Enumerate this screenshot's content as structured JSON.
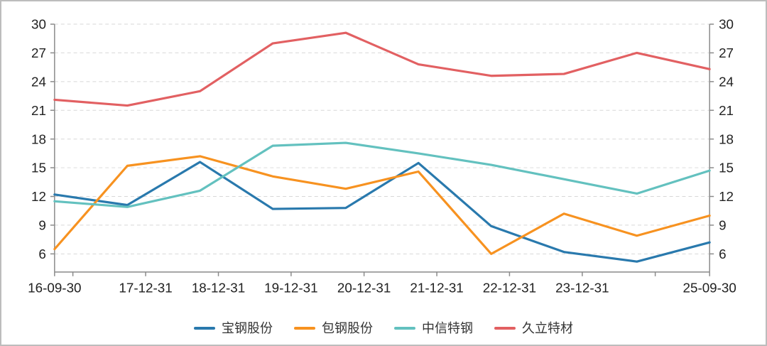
{
  "chart_data": {
    "type": "line",
    "title": "",
    "x_axis": {
      "type": "time",
      "start": "16-09-30",
      "end": "25-09-30",
      "tick_dates": [
        "16-09-30",
        "16-12-31",
        "17-12-31",
        "18-12-31",
        "19-12-31",
        "20-12-31",
        "21-12-31",
        "22-12-31",
        "23-12-31",
        "24-12-31",
        "25-09-30"
      ],
      "label_dates": [
        "16-09-30",
        "17-12-31",
        "18-12-31",
        "19-12-31",
        "20-12-31",
        "21-12-31",
        "22-12-31",
        "23-12-31",
        "25-09-30"
      ]
    },
    "y_axis": {
      "ticks": [
        6,
        9,
        12,
        15,
        18,
        21,
        24,
        27,
        30
      ],
      "implied_min": 4,
      "max": 30,
      "dual": true,
      "grid": "dashed"
    },
    "point_dates": [
      "16-09-30",
      "17-09-30",
      "18-09-30",
      "19-09-30",
      "20-09-30",
      "21-09-30",
      "22-09-30",
      "23-09-30",
      "24-09-30",
      "25-09-30"
    ],
    "series": [
      {
        "name": "宝钢股份",
        "color": "#2979ad",
        "values": [
          12.2,
          11.1,
          15.6,
          10.7,
          10.8,
          15.5,
          8.9,
          6.2,
          5.2,
          7.2
        ]
      },
      {
        "name": "包钢股份",
        "color": "#f79220",
        "values": [
          6.5,
          15.2,
          16.2,
          14.1,
          12.8,
          14.6,
          6.0,
          10.2,
          7.9,
          10.0
        ]
      },
      {
        "name": "中信特钢",
        "color": "#63c1bf",
        "values": [
          11.5,
          10.9,
          12.6,
          17.3,
          17.6,
          16.5,
          15.3,
          13.8,
          12.3,
          14.7
        ]
      },
      {
        "name": "久立特材",
        "color": "#e26062",
        "values": [
          22.1,
          21.5,
          23.0,
          28.0,
          29.1,
          25.8,
          24.6,
          24.8,
          27.0,
          25.3
        ]
      }
    ],
    "legend_position": "bottom",
    "styles": {
      "grid_color": "#d7d7d7",
      "axis_color": "#8a8a8a",
      "label_color": "#222222",
      "line_width": 3.2,
      "font_size_px": 18
    }
  }
}
